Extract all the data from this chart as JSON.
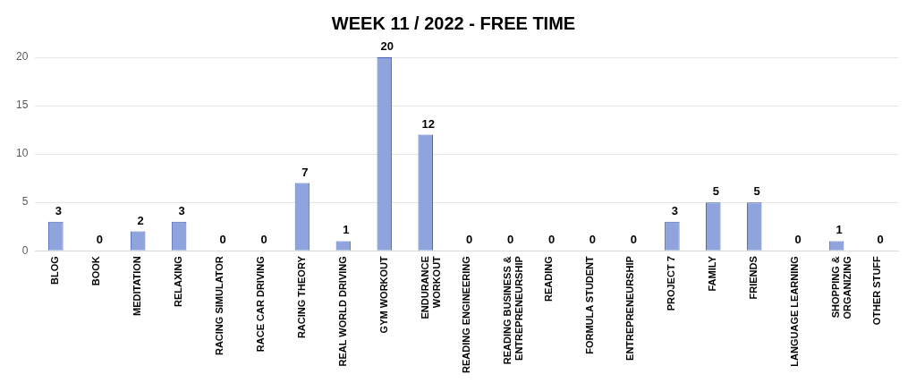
{
  "chart_data": {
    "type": "bar",
    "title": "WEEK 11 / 2022 - FREE TIME",
    "categories": [
      "BLOG",
      "BOOK",
      "MEDITATION",
      "RELAXING",
      "RACING SIMULATOR",
      "RACE CAR DRIVING",
      "RACING THEORY",
      "REAL WORLD DRIVING",
      "GYM WORKOUT",
      "ENDURANCE\nWORKOUT",
      "READING ENGINEERING",
      "READING BUSINESS &\nENTREPRENEURSHIP",
      "READING",
      "FORMULA STUDENT",
      "ENTREPRENEURSHIP",
      "PROJECT 7",
      "FAMILY",
      "FRIENDS",
      "LANGUAGE LEARNING",
      "SHOPPING &\nORGANIZING",
      "OTHER STUFF"
    ],
    "values": [
      3,
      0,
      2,
      3,
      0,
      0,
      7,
      1,
      20,
      12,
      0,
      0,
      0,
      0,
      0,
      3,
      5,
      5,
      0,
      1,
      0
    ],
    "color": "#8fa4dc",
    "ylim": [
      0,
      20
    ],
    "yticks": [
      0,
      5,
      10,
      15,
      20
    ],
    "grid": "y",
    "data_labels": true,
    "legend": false
  }
}
